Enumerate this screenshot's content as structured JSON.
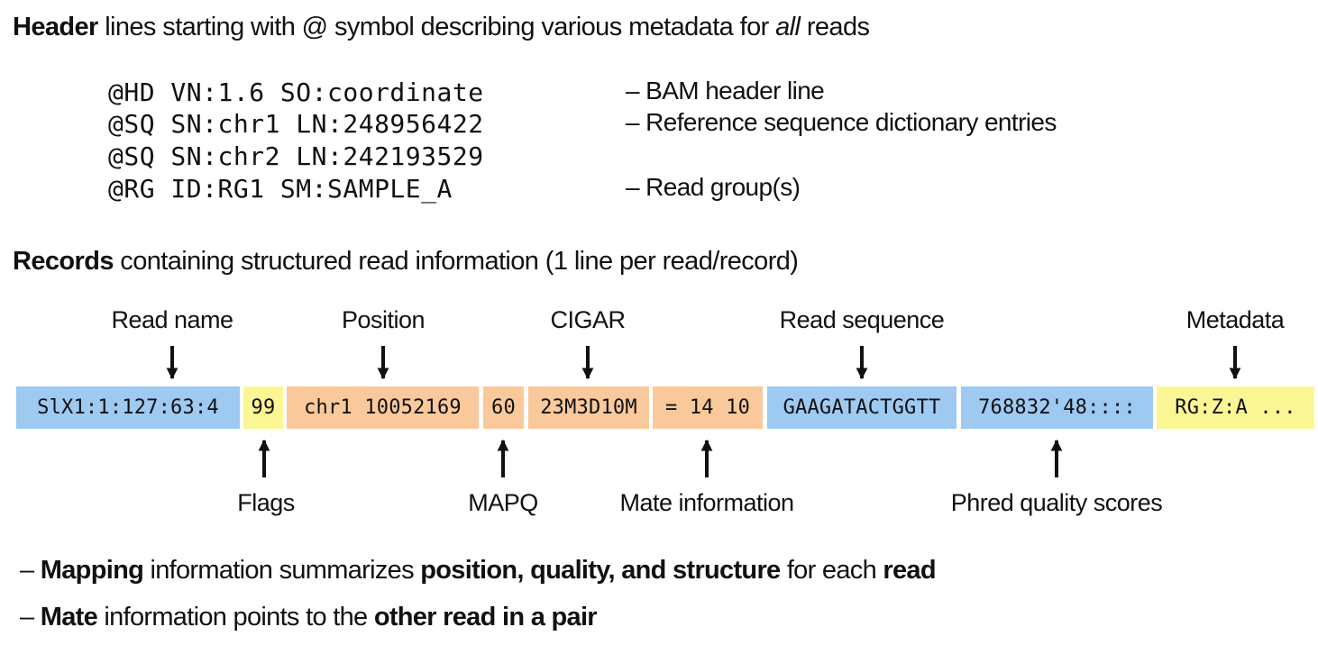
{
  "header_section": {
    "title_bold": "Header",
    "title_pre": " lines starting with @ symbol describing various metadata for ",
    "title_em": "all",
    "title_post": " reads"
  },
  "header_lines": [
    {
      "code": "@HD VN:1.6 SO:coordinate",
      "desc": "– BAM header line"
    },
    {
      "code": "@SQ SN:chr1 LN:248956422",
      "desc": "– Reference sequence dictionary entries"
    },
    {
      "code": "@SQ SN:chr2 LN:242193529",
      "desc": ""
    },
    {
      "code": "@RG ID:RG1 SM:SAMPLE_A",
      "desc": "– Read group(s)"
    }
  ],
  "records_section": {
    "title_bold": "Records",
    "title_rest": " containing structured read information (1 line per read/record)"
  },
  "record_segments": [
    {
      "text": "SlX1:1:127:63:4",
      "color": "#9ec9f1"
    },
    {
      "text": "99",
      "color": "#fbf694"
    },
    {
      "text": "chr1 10052169",
      "color": "#f9c99b"
    },
    {
      "text": "60",
      "color": "#f9c99b"
    },
    {
      "text": "23M3D10M",
      "color": "#f9c99b"
    },
    {
      "text": "= 14 10",
      "color": "#f9c99b"
    },
    {
      "text": "GAAGATACTGGTT",
      "color": "#9ec9f1"
    },
    {
      "text": "768832'48::::",
      "color": "#9ec9f1"
    },
    {
      "text": "RG:Z:A ...",
      "color": "#fbf694"
    }
  ],
  "labels_above": [
    "Read name",
    "Position",
    "CIGAR",
    "Read sequence",
    "Metadata"
  ],
  "labels_below": [
    "Flags",
    "MAPQ",
    "Mate information",
    "Phred quality scores"
  ],
  "notes": [
    {
      "dash": "– ",
      "b1": "Mapping",
      "t1": " information summarizes ",
      "b2": "position, quality, and structure",
      "t2": " for each ",
      "b3": "read"
    },
    {
      "dash": "– ",
      "b1": "Mate",
      "t1": " information points to the ",
      "b2": "other read in a pair",
      "t2": "",
      "b3": ""
    }
  ]
}
